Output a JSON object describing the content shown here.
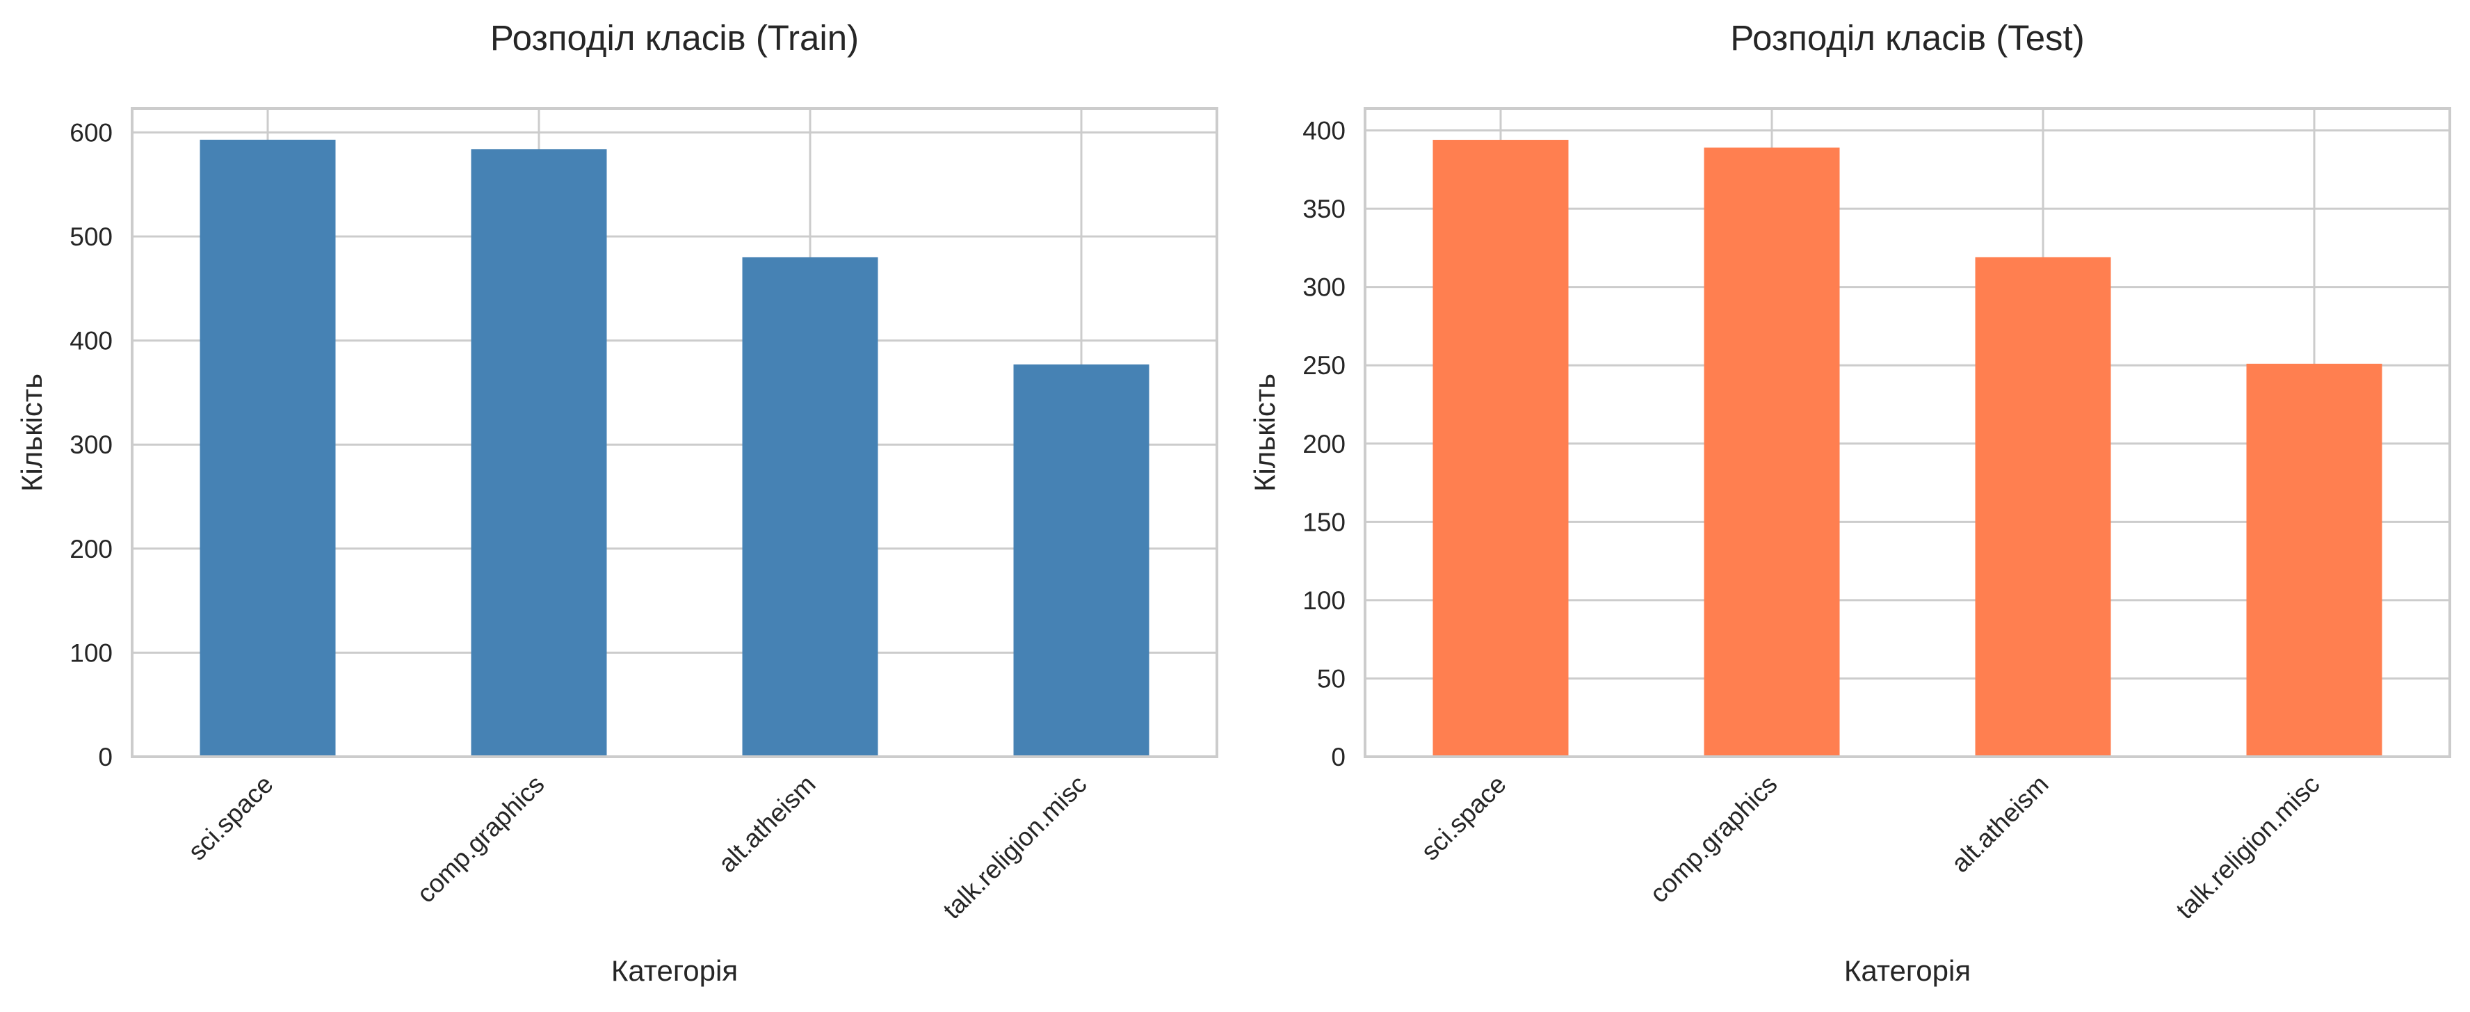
{
  "chart_data": [
    {
      "type": "bar",
      "title": "Розподіл класів (Train)",
      "xlabel": "Категорія",
      "ylabel": "Кількість",
      "categories": [
        "sci.space",
        "comp.graphics",
        "alt.atheism",
        "talk.religion.misc"
      ],
      "values": [
        593,
        584,
        480,
        377
      ],
      "ylim": [
        0,
        623
      ],
      "yticks": [
        0,
        100,
        200,
        300,
        400,
        500,
        600
      ],
      "grid": true,
      "color": "#4682b4"
    },
    {
      "type": "bar",
      "title": "Розподіл класів (Test)",
      "xlabel": "Категорія",
      "ylabel": "Кількість",
      "categories": [
        "sci.space",
        "comp.graphics",
        "alt.atheism",
        "talk.religion.misc"
      ],
      "values": [
        394,
        389,
        319,
        251
      ],
      "ylim": [
        0,
        414
      ],
      "yticks": [
        0,
        50,
        100,
        150,
        200,
        250,
        300,
        350,
        400
      ],
      "grid": true,
      "color": "#ff7f50"
    }
  ]
}
